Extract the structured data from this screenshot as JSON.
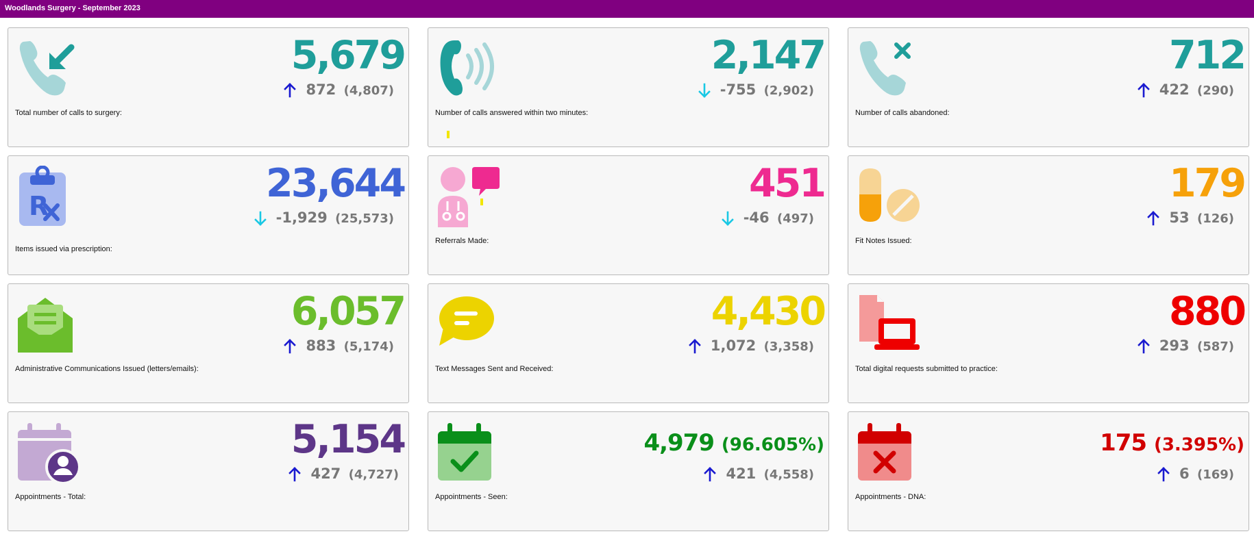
{
  "page_title": "Woodlands Surgery - September 2023",
  "colors": {
    "title_bar": "#800080",
    "teal": "#1f9e9a",
    "light_teal": "#a6d6d8",
    "blue": "#3f64d6",
    "pink": "#ee2a90",
    "orange": "#f6a10a",
    "green": "#6bbd2c",
    "yellow": "#ecd300",
    "red": "#ee0000",
    "purple": "#5d3688",
    "dark_green": "#0a8f1a",
    "dark_red": "#d10000",
    "arrow_up": "#1a1ad0",
    "arrow_down": "#19c8e4",
    "delta_text": "#777777"
  },
  "cards": [
    {
      "id": "calls_total",
      "icon": "incoming-call-icon",
      "value": "5,679",
      "change": "872",
      "previous": "(4,807)",
      "direction": "up",
      "label": "Total number of calls to surgery:"
    },
    {
      "id": "calls_answered",
      "icon": "phone-ringing-icon",
      "value": "2,147",
      "change": "-755",
      "previous": "(2,902)",
      "direction": "down",
      "label": "Number of calls answered within two minutes:"
    },
    {
      "id": "calls_abandoned",
      "icon": "missed-call-icon",
      "value": "712",
      "change": "422",
      "previous": "(290)",
      "direction": "up",
      "label": "Number of calls abandoned:"
    },
    {
      "id": "prescriptions",
      "icon": "prescription-clipboard-icon",
      "value": "23,644",
      "change": "-1,929",
      "previous": "(25,573)",
      "direction": "down",
      "label": "Items issued via prescription:"
    },
    {
      "id": "referrals",
      "icon": "doctor-consultation-icon",
      "value": "451",
      "change": "-46",
      "previous": "(497)",
      "direction": "down",
      "label": "Referrals Made:"
    },
    {
      "id": "fit_notes",
      "icon": "pills-icon",
      "value": "179",
      "change": "53",
      "previous": "(126)",
      "direction": "up",
      "label": "Fit Notes Issued:"
    },
    {
      "id": "admin_comms",
      "icon": "open-envelope-icon",
      "value": "6,057",
      "change": "883",
      "previous": "(5,174)",
      "direction": "up",
      "label": "Administrative Communications Issued (letters/emails):"
    },
    {
      "id": "text_messages",
      "icon": "speech-bubble-icon",
      "value": "4,430",
      "change": "1,072",
      "previous": "(3,358)",
      "direction": "up",
      "label": "Text Messages Sent and Received:"
    },
    {
      "id": "digital_requests",
      "icon": "digital-request-laptop-icon",
      "value": "880",
      "change": "293",
      "previous": "(587)",
      "direction": "up",
      "label": "Total digital requests submitted to practice:"
    },
    {
      "id": "appts_total",
      "icon": "calendar-user-icon",
      "value": "5,154",
      "change": "427",
      "previous": "(4,727)",
      "direction": "up",
      "label": "Appointments - Total:"
    },
    {
      "id": "appts_seen",
      "icon": "calendar-check-icon",
      "value": "4,979",
      "percent": "(96.605%)",
      "change": "421",
      "previous": "(4,558)",
      "direction": "up",
      "label": "Appointments - Seen:"
    },
    {
      "id": "appts_dna",
      "icon": "calendar-cross-icon",
      "value": "175",
      "percent": "(3.395%)",
      "change": "6",
      "previous": "(169)",
      "direction": "up",
      "label": "Appointments - DNA:"
    }
  ]
}
